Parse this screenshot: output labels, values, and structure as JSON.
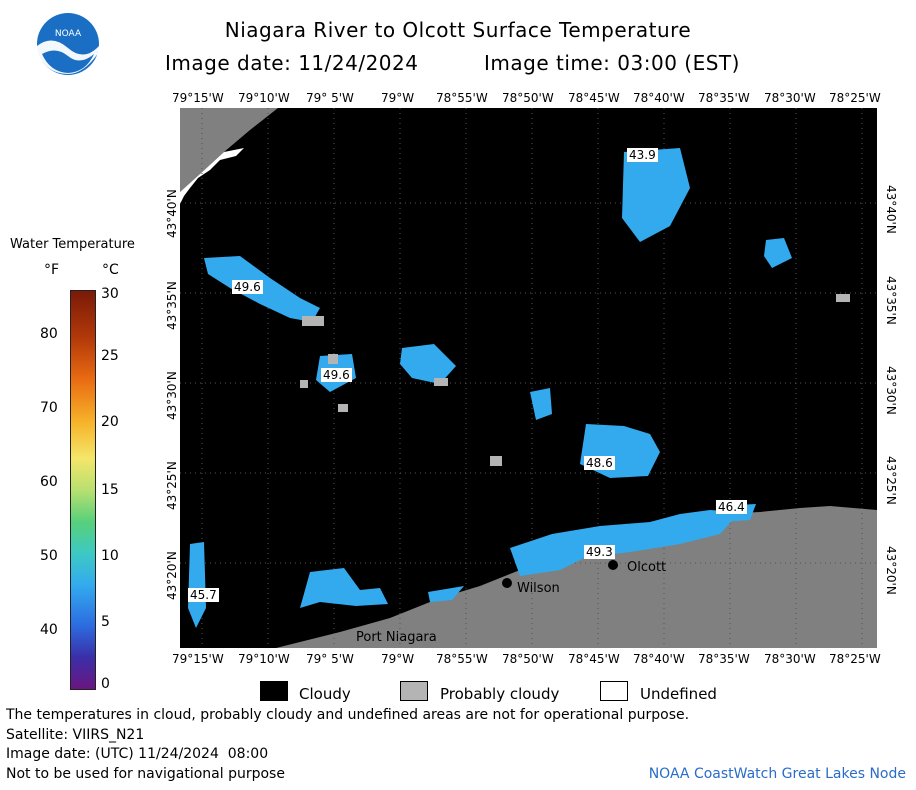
{
  "header": {
    "title": "Niagara River to Olcott Surface Temperature",
    "image_date_line": "Image date: 11/24/2024",
    "image_time_line": "Image time: 03:00 (EST)"
  },
  "logo": {
    "text": "NOAA",
    "color": "#1a6fc4"
  },
  "map": {
    "lon_ticks": [
      "79°15'W",
      "79°10'W",
      "79° 5'W",
      "79°W",
      "78°55'W",
      "78°50'W",
      "78°45'W",
      "78°40'W",
      "78°35'W",
      "78°30'W",
      "78°25'W"
    ],
    "lat_ticks": [
      "43°40'N",
      "43°35'N",
      "43°30'N",
      "43°25'N",
      "43°20'N"
    ],
    "temp_labels": [
      "43.9",
      "49.6",
      "49.6",
      "48.6",
      "46.4",
      "49.3",
      "45.7"
    ],
    "places": [
      "Wilson",
      "Olcott",
      "Port Niagara"
    ],
    "colors": {
      "cloud": "#000000",
      "land": "#808080",
      "water": "#33aaee",
      "undefined": "#ffffff"
    }
  },
  "colorbar": {
    "title": "Water Temperature",
    "unit_f": "°F",
    "unit_c": "°C",
    "f_ticks": [
      "80",
      "70",
      "60",
      "50",
      "40"
    ],
    "c_ticks": [
      "30",
      "25",
      "20",
      "15",
      "10",
      "5",
      "0"
    ]
  },
  "legend": [
    {
      "label": "Cloudy",
      "color": "#000000"
    },
    {
      "label": "Probably cloudy",
      "color": "#b4b4b4"
    },
    {
      "label": "Undefined",
      "color": "#ffffff"
    }
  ],
  "footer": {
    "note": "The temperatures in cloud, probably cloudy and undefined areas are not for operational purpose.",
    "satellite": "Satellite: VIIRS_N21",
    "utc_date": "Image date: (UTC) 11/24/2024  08:00",
    "nav_warning": "Not to be used for navigational purpose",
    "credit": "NOAA CoastWatch Great Lakes Node"
  }
}
